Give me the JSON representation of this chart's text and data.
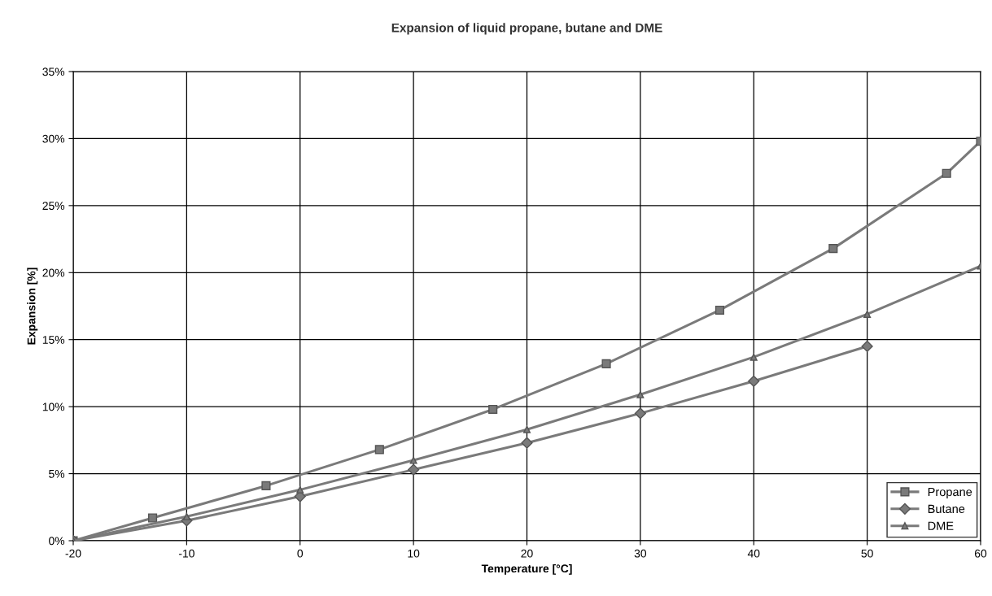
{
  "chart_data": {
    "type": "line",
    "title": "Expansion of liquid propane, butane and DME",
    "xlabel": "Temperature [°C]",
    "ylabel": "Expansion [%]",
    "series": [
      {
        "name": "Propane",
        "color": "#7a7a7a",
        "marker": "square",
        "x": [
          -20,
          -13,
          -3,
          7,
          17,
          27,
          37,
          47,
          57,
          60
        ],
        "values": [
          0,
          1.7,
          4.1,
          6.8,
          9.8,
          13.2,
          17.2,
          21.8,
          27.4,
          29.8
        ]
      },
      {
        "name": "Butane",
        "color": "#7a7a7a",
        "marker": "diamond",
        "x": [
          -20,
          -10,
          0,
          10,
          20,
          30,
          40,
          50
        ],
        "values": [
          0,
          1.5,
          3.3,
          5.3,
          7.3,
          9.5,
          11.9,
          14.5
        ]
      },
      {
        "name": "DME",
        "color": "#7a7a7a",
        "marker": "triangle",
        "x": [
          -20,
          -10,
          0,
          10,
          20,
          30,
          40,
          50,
          60
        ],
        "values": [
          0,
          1.8,
          3.8,
          6.0,
          8.3,
          10.9,
          13.7,
          16.9,
          20.5
        ]
      }
    ],
    "xlim": [
      -20,
      60
    ],
    "xticks": [
      -20,
      -10,
      0,
      10,
      20,
      30,
      40,
      50,
      60
    ],
    "ylim": [
      0,
      35
    ],
    "yticks": [
      {
        "value": 0,
        "label": "0%"
      },
      {
        "value": 5,
        "label": "5%"
      },
      {
        "value": 10,
        "label": "10%"
      },
      {
        "value": 15,
        "label": "15%"
      },
      {
        "value": 20,
        "label": "20%"
      },
      {
        "value": 25,
        "label": "25%"
      },
      {
        "value": 30,
        "label": "30%"
      },
      {
        "value": 35,
        "label": "35%"
      }
    ],
    "grid": true,
    "legend": "bottom right",
    "line_style": "solid"
  }
}
